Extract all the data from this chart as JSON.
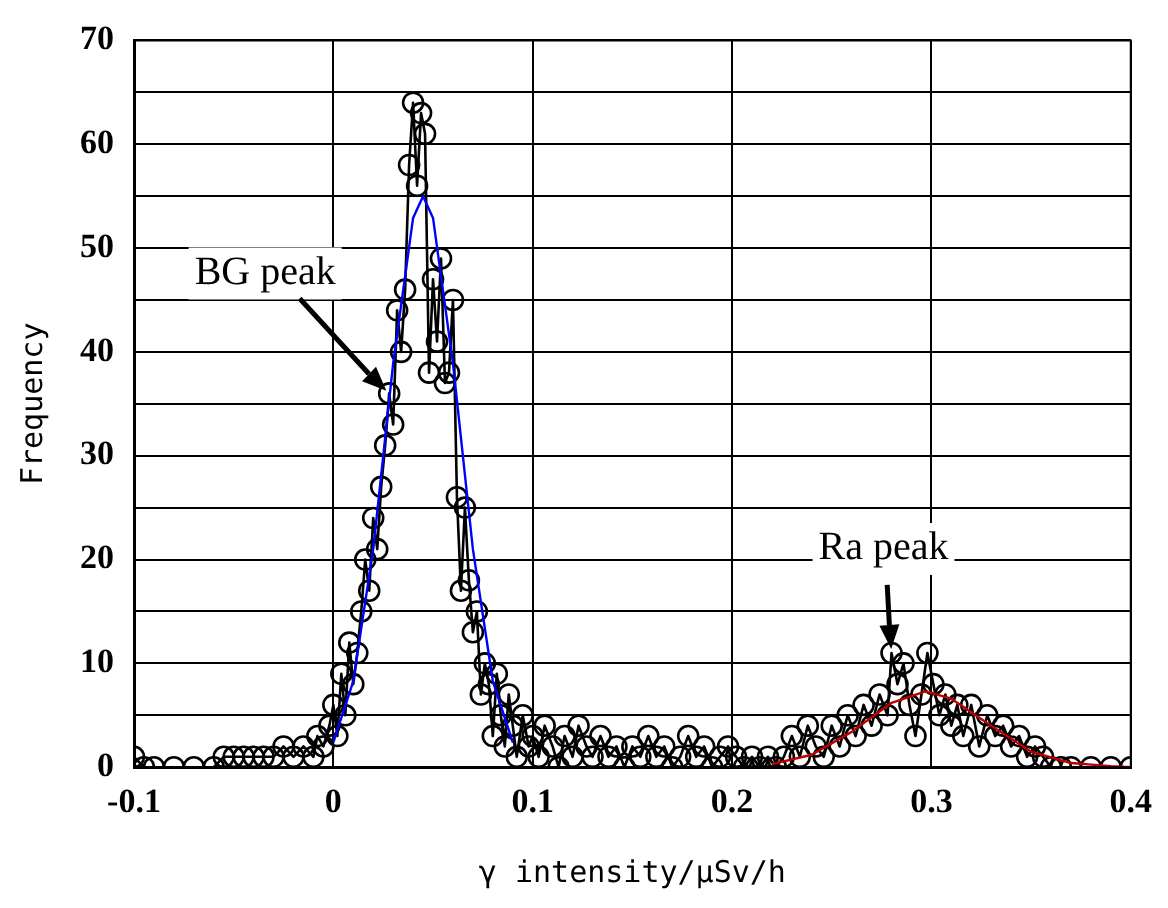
{
  "chart_data": {
    "type": "line",
    "xlabel": "γ intensity/μSv/h",
    "ylabel": "Frequency",
    "xlim": [
      -0.1,
      0.4
    ],
    "xticks": [
      -0.1,
      0,
      0.1,
      0.2,
      0.3,
      0.4
    ],
    "ylim": [
      0,
      70
    ],
    "yticks": [
      0,
      {
        "value": 5,
        "label": null
      },
      10,
      {
        "value": 15,
        "label": null
      },
      20,
      {
        "value": 25,
        "label": null
      },
      30,
      {
        "value": 35,
        "label": null
      },
      40,
      {
        "value": 45,
        "label": null
      },
      50,
      {
        "value": 55,
        "label": null
      },
      60,
      {
        "value": 65,
        "label": null
      },
      70
    ],
    "grid": true,
    "legend": false,
    "annotations": [
      {
        "text": "BG peak",
        "x": 0.028,
        "y": 36
      },
      {
        "text": "Ra peak",
        "x": 0.28,
        "y": 11
      }
    ],
    "series": [
      {
        "color": "#000000",
        "marker": "circle",
        "line_style": "solid",
        "x": [
          -0.1,
          -0.095,
          -0.09,
          -0.08,
          -0.07,
          -0.06,
          -0.055,
          -0.05,
          -0.045,
          -0.04,
          -0.035,
          -0.03,
          -0.025,
          -0.02,
          -0.015,
          -0.01,
          -0.008,
          -0.005,
          -0.002,
          0,
          0.002,
          0.004,
          0.006,
          0.008,
          0.01,
          0.012,
          0.014,
          0.016,
          0.018,
          0.02,
          0.022,
          0.024,
          0.026,
          0.028,
          0.03,
          0.032,
          0.034,
          0.036,
          0.038,
          0.04,
          0.042,
          0.044,
          0.046,
          0.048,
          0.05,
          0.052,
          0.054,
          0.056,
          0.058,
          0.06,
          0.062,
          0.064,
          0.066,
          0.068,
          0.07,
          0.072,
          0.074,
          0.076,
          0.078,
          0.08,
          0.082,
          0.084,
          0.086,
          0.088,
          0.09,
          0.092,
          0.095,
          0.098,
          0.1,
          0.103,
          0.106,
          0.11,
          0.113,
          0.116,
          0.12,
          0.123,
          0.127,
          0.13,
          0.134,
          0.138,
          0.142,
          0.146,
          0.15,
          0.154,
          0.158,
          0.162,
          0.166,
          0.17,
          0.174,
          0.178,
          0.182,
          0.186,
          0.19,
          0.194,
          0.198,
          0.202,
          0.206,
          0.21,
          0.214,
          0.218,
          0.222,
          0.226,
          0.23,
          0.234,
          0.238,
          0.242,
          0.246,
          0.25,
          0.254,
          0.258,
          0.262,
          0.266,
          0.27,
          0.274,
          0.278,
          0.28,
          0.283,
          0.286,
          0.289,
          0.292,
          0.295,
          0.298,
          0.301,
          0.304,
          0.307,
          0.31,
          0.313,
          0.316,
          0.32,
          0.324,
          0.328,
          0.332,
          0.336,
          0.34,
          0.344,
          0.348,
          0.352,
          0.356,
          0.36,
          0.365,
          0.37,
          0.38,
          0.39,
          0.4
        ],
        "values": [
          1,
          0,
          0,
          0,
          0,
          0,
          1,
          1,
          1,
          1,
          1,
          1,
          2,
          1,
          2,
          1,
          3,
          2,
          4,
          6,
          3,
          9,
          5,
          12,
          8,
          11,
          15,
          20,
          17,
          24,
          21,
          27,
          31,
          36,
          33,
          44,
          40,
          46,
          58,
          64,
          56,
          63,
          61,
          38,
          47,
          41,
          49,
          37,
          38,
          45,
          26,
          17,
          25,
          18,
          13,
          15,
          7,
          10,
          8,
          3,
          9,
          5,
          2,
          7,
          4,
          1,
          5,
          2,
          3,
          1,
          4,
          2,
          0,
          3,
          1,
          4,
          2,
          1,
          3,
          1,
          2,
          0,
          2,
          1,
          3,
          1,
          2,
          0,
          1,
          3,
          1,
          2,
          0,
          1,
          2,
          1,
          0,
          1,
          0,
          1,
          0,
          1,
          3,
          1,
          4,
          2,
          1,
          4,
          2,
          5,
          3,
          6,
          4,
          7,
          5,
          11,
          8,
          10,
          6,
          3,
          7,
          11,
          8,
          5,
          7,
          4,
          6,
          3,
          6,
          2,
          5,
          3,
          4,
          2,
          3,
          1,
          2,
          1,
          0,
          0,
          0,
          0,
          0,
          0
        ]
      },
      {
        "color": "#0000ff",
        "marker": "none",
        "line_style": "solid",
        "x": [
          0,
          0.01,
          0.02,
          0.03,
          0.04,
          0.045,
          0.05,
          0.06,
          0.07,
          0.08,
          0.09
        ],
        "values": [
          2.4,
          8.3,
          21,
          38.9,
          52.9,
          55,
          52.9,
          38.9,
          21,
          8.3,
          2.4
        ]
      },
      {
        "color": "#c00000",
        "marker": "none",
        "line_style": "solid",
        "x": [
          0.22,
          0.24,
          0.26,
          0.28,
          0.297,
          0.31,
          0.33,
          0.35,
          0.37,
          0.39,
          0.4
        ],
        "values": [
          0.3,
          1.2,
          3.4,
          6.2,
          7.3,
          6.6,
          4,
          1.5,
          0.4,
          0.1,
          0
        ]
      }
    ]
  }
}
